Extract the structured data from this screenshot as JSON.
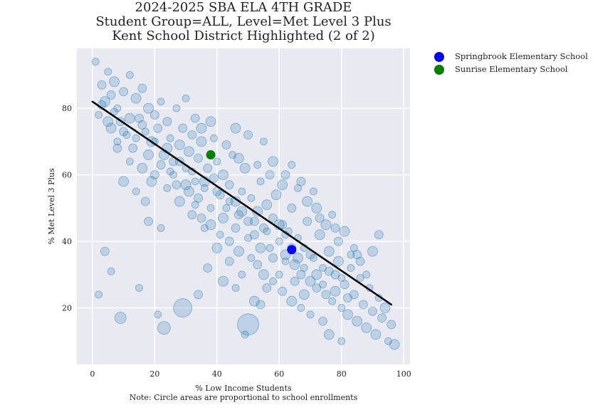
{
  "chart_data": {
    "type": "scatter",
    "title_lines": [
      "2024-2025 SBA ELA 4TH GRADE",
      "Student Group=ALL, Level=Met Level 3 Plus",
      "Kent School District Highlighted (2 of 2)"
    ],
    "xlabel": "% Low Income Students",
    "ylabel": "% Met Level 3 Plus",
    "note": "Note: Circle areas are proportional to school enrollments",
    "xlim": [
      -5,
      102
    ],
    "ylim": [
      3,
      98
    ],
    "xticks": [
      0,
      20,
      40,
      60,
      80,
      100
    ],
    "yticks": [
      20,
      40,
      60,
      80
    ],
    "grid": true,
    "legend_position": "outside-right-top",
    "colors": {
      "background": "#e9e9f1",
      "grid": "#ffffff",
      "scatter": "#1f77b4",
      "trend": "#000000"
    },
    "trend_line": {
      "x": [
        0,
        96
      ],
      "y": [
        82,
        21
      ]
    },
    "highlighted": [
      {
        "name": "Springbrook Elementary School",
        "x": 64,
        "y": 37.5,
        "color": "#0000ff"
      },
      {
        "name": "Sunrise Elementary School",
        "x": 38,
        "y": 66,
        "color": "#008000"
      }
    ],
    "series": [
      {
        "values": [
          [
            1,
            94
          ],
          [
            3,
            87
          ],
          [
            5,
            91
          ],
          [
            4,
            82
          ],
          [
            6,
            84
          ],
          [
            8,
            80
          ],
          [
            7,
            88
          ],
          [
            10,
            85
          ],
          [
            2,
            78
          ],
          [
            9,
            76
          ],
          [
            12,
            90
          ],
          [
            14,
            83
          ],
          [
            15,
            77
          ],
          [
            11,
            72
          ],
          [
            13,
            68
          ],
          [
            6,
            74
          ],
          [
            8,
            70
          ],
          [
            16,
            86
          ],
          [
            18,
            80
          ],
          [
            17,
            73
          ],
          [
            20,
            78
          ],
          [
            19,
            70
          ],
          [
            22,
            82
          ],
          [
            21,
            74
          ],
          [
            23,
            66
          ],
          [
            24,
            76
          ],
          [
            25,
            71
          ],
          [
            26,
            64
          ],
          [
            27,
            80
          ],
          [
            28,
            69
          ],
          [
            29,
            74
          ],
          [
            30,
            62
          ],
          [
            31,
            67
          ],
          [
            32,
            72
          ],
          [
            33,
            58
          ],
          [
            34,
            65
          ],
          [
            35,
            70
          ],
          [
            36,
            56
          ],
          [
            37,
            62
          ],
          [
            38,
            76
          ],
          [
            39,
            59
          ],
          [
            40,
            64
          ],
          [
            41,
            54
          ],
          [
            42,
            60
          ],
          [
            43,
            50
          ],
          [
            44,
            57
          ],
          [
            45,
            66
          ],
          [
            46,
            52
          ],
          [
            47,
            48
          ],
          [
            48,
            55
          ],
          [
            49,
            62
          ],
          [
            50,
            46
          ],
          [
            51,
            53
          ],
          [
            52,
            42
          ],
          [
            53,
            49
          ],
          [
            54,
            58
          ],
          [
            55,
            44
          ],
          [
            56,
            51
          ],
          [
            57,
            38
          ],
          [
            58,
            47
          ],
          [
            59,
            54
          ],
          [
            60,
            40
          ],
          [
            61,
            45
          ],
          [
            62,
            36
          ],
          [
            63,
            43
          ],
          [
            64,
            50
          ],
          [
            65,
            33
          ],
          [
            66,
            41
          ],
          [
            67,
            30
          ],
          [
            68,
            38
          ],
          [
            69,
            46
          ],
          [
            70,
            28
          ],
          [
            71,
            35
          ],
          [
            72,
            26
          ],
          [
            73,
            42
          ],
          [
            74,
            32
          ],
          [
            75,
            24
          ],
          [
            76,
            37
          ],
          [
            77,
            22
          ],
          [
            78,
            30
          ],
          [
            79,
            34
          ],
          [
            80,
            20
          ],
          [
            81,
            27
          ],
          [
            82,
            18
          ],
          [
            83,
            32
          ],
          [
            84,
            24
          ],
          [
            85,
            16
          ],
          [
            86,
            29
          ],
          [
            87,
            21
          ],
          [
            88,
            14
          ],
          [
            89,
            26
          ],
          [
            90,
            19
          ],
          [
            91,
            12
          ],
          [
            92,
            23
          ],
          [
            93,
            17
          ],
          [
            94,
            20
          ],
          [
            95,
            10
          ],
          [
            96,
            15
          ],
          [
            97,
            9
          ],
          [
            84,
            38
          ],
          [
            78,
            44
          ],
          [
            72,
            50
          ],
          [
            66,
            56
          ],
          [
            62,
            60
          ],
          [
            58,
            64
          ],
          [
            55,
            70
          ],
          [
            50,
            72
          ],
          [
            46,
            74
          ],
          [
            60,
            30
          ],
          [
            56,
            26
          ],
          [
            52,
            22
          ],
          [
            48,
            30
          ],
          [
            44,
            34
          ],
          [
            40,
            38
          ],
          [
            36,
            44
          ],
          [
            32,
            48
          ],
          [
            28,
            52
          ],
          [
            24,
            56
          ],
          [
            20,
            60
          ],
          [
            16,
            62
          ],
          [
            12,
            64
          ],
          [
            8,
            68
          ],
          [
            4,
            37
          ],
          [
            6,
            31
          ],
          [
            2,
            24
          ],
          [
            9,
            17
          ],
          [
            15,
            26
          ],
          [
            21,
            18
          ],
          [
            23,
            14
          ],
          [
            18,
            46
          ],
          [
            22,
            44
          ],
          [
            29,
            20
          ],
          [
            34,
            24
          ],
          [
            37,
            32
          ],
          [
            42,
            28
          ],
          [
            46,
            26
          ],
          [
            49,
            12
          ],
          [
            50,
            15
          ],
          [
            54,
            21
          ],
          [
            62,
            34
          ],
          [
            65,
            28
          ],
          [
            68,
            24
          ],
          [
            70,
            18
          ],
          [
            74,
            16
          ],
          [
            76,
            12
          ],
          [
            80,
            10
          ],
          [
            85,
            36
          ],
          [
            88,
            30
          ],
          [
            90,
            37
          ],
          [
            92,
            42
          ],
          [
            30,
            83
          ],
          [
            33,
            77
          ],
          [
            35,
            74
          ],
          [
            39,
            71
          ],
          [
            43,
            69
          ],
          [
            47,
            65
          ],
          [
            53,
            63
          ],
          [
            57,
            60
          ],
          [
            61,
            57
          ],
          [
            64,
            63
          ],
          [
            67,
            58
          ],
          [
            69,
            52
          ],
          [
            71,
            55
          ],
          [
            73,
            47
          ],
          [
            75,
            45
          ],
          [
            77,
            48
          ],
          [
            79,
            40
          ],
          [
            81,
            43
          ],
          [
            83,
            36
          ],
          [
            86,
            34
          ],
          [
            10,
            58
          ],
          [
            14,
            55
          ],
          [
            17,
            52
          ],
          [
            19,
            58
          ],
          [
            25,
            61
          ],
          [
            27,
            57
          ],
          [
            31,
            55
          ],
          [
            33,
            51
          ],
          [
            35,
            47
          ],
          [
            38,
            45
          ],
          [
            41,
            42
          ],
          [
            44,
            40
          ],
          [
            47,
            37
          ],
          [
            51,
            35
          ],
          [
            53,
            33
          ],
          [
            55,
            30
          ],
          [
            58,
            28
          ],
          [
            61,
            25
          ],
          [
            64,
            22
          ],
          [
            67,
            20
          ],
          [
            3,
            81
          ],
          [
            5,
            76
          ],
          [
            7,
            79
          ],
          [
            10,
            73
          ],
          [
            12,
            77
          ],
          [
            14,
            71
          ],
          [
            16,
            75
          ],
          [
            18,
            66
          ],
          [
            20,
            70
          ],
          [
            22,
            63
          ],
          [
            24,
            68
          ],
          [
            26,
            60
          ],
          [
            28,
            64
          ],
          [
            30,
            57
          ],
          [
            32,
            61
          ],
          [
            34,
            53
          ],
          [
            36,
            58
          ],
          [
            38,
            50
          ],
          [
            40,
            55
          ],
          [
            42,
            47
          ],
          [
            44,
            52
          ],
          [
            46,
            44
          ],
          [
            48,
            49
          ],
          [
            50,
            41
          ],
          [
            52,
            46
          ],
          [
            54,
            38
          ],
          [
            56,
            43
          ],
          [
            58,
            35
          ],
          [
            60,
            45
          ],
          [
            62,
            42
          ],
          [
            64,
            38
          ],
          [
            66,
            35
          ],
          [
            68,
            32
          ],
          [
            70,
            36
          ],
          [
            72,
            30
          ],
          [
            74,
            27
          ],
          [
            76,
            31
          ],
          [
            78,
            25
          ],
          [
            80,
            29
          ],
          [
            82,
            23
          ]
        ],
        "sizes": [
          5,
          6,
          5,
          7,
          6,
          5,
          7,
          6,
          5,
          6,
          5,
          7,
          6,
          5,
          6,
          7,
          5,
          6,
          7,
          5,
          6,
          7,
          5,
          6,
          7,
          6,
          5,
          6,
          5,
          7,
          6,
          5,
          7,
          6,
          5,
          6,
          7,
          5,
          6,
          7,
          6,
          5,
          6,
          7,
          5,
          6,
          5,
          7,
          6,
          5,
          7,
          6,
          5,
          6,
          7,
          5,
          6,
          7,
          5,
          6,
          7,
          5,
          6,
          7,
          5,
          6,
          7,
          5,
          6,
          5,
          6,
          7,
          5,
          6,
          7,
          5,
          6,
          7,
          5,
          6,
          7,
          5,
          6,
          7,
          5,
          6,
          7,
          5,
          6,
          7,
          5,
          6,
          7,
          5,
          6,
          7,
          5,
          6,
          7,
          5,
          6,
          7,
          5,
          6,
          7,
          5,
          6,
          7,
          5,
          6,
          7,
          5,
          6,
          7,
          5,
          6,
          7,
          5,
          6,
          7,
          5,
          6,
          6,
          5,
          5,
          8,
          5,
          5,
          9,
          6,
          5,
          13,
          6,
          6,
          7,
          5,
          5,
          15,
          6,
          5,
          6,
          7,
          5,
          6,
          7,
          5,
          6,
          5,
          7,
          6,
          5,
          6,
          7,
          5,
          6,
          7,
          5,
          6,
          7,
          5,
          6,
          7,
          5,
          6,
          7,
          5,
          6,
          7,
          5,
          6,
          7,
          5,
          6,
          7,
          5,
          6,
          7,
          5,
          6,
          7,
          5,
          6,
          7,
          5,
          6,
          7,
          5,
          6,
          7,
          5,
          6,
          7,
          5,
          6,
          7,
          5,
          6,
          7,
          5,
          6,
          7,
          5,
          6,
          7,
          5,
          6,
          7,
          5,
          6,
          7,
          5,
          6,
          7,
          5,
          6,
          7,
          5,
          6,
          7,
          5,
          6,
          7,
          5,
          6,
          7,
          5,
          6,
          7,
          5,
          6,
          7,
          5,
          6,
          7,
          5,
          6,
          7,
          5,
          6,
          7
        ]
      }
    ]
  }
}
